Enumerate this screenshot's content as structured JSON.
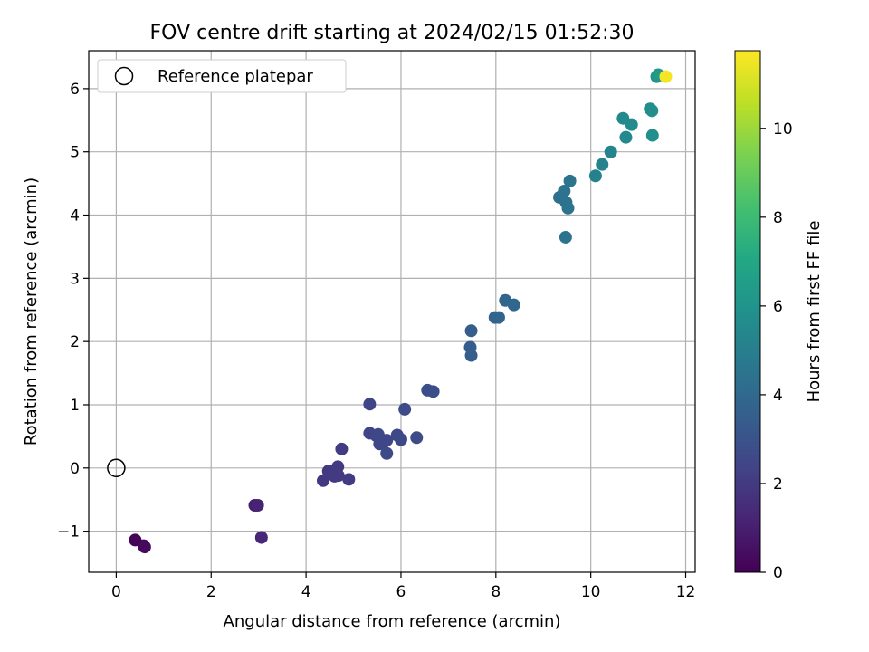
{
  "chart_data": {
    "type": "scatter",
    "title": "FOV centre drift starting at 2024/02/15 01:52:30",
    "xlabel": "Angular distance from reference (arcmin)",
    "ylabel": "Rotation from reference (arcmin)",
    "xlim": [
      -0.58,
      12.2
    ],
    "ylim": [
      -1.65,
      6.6
    ],
    "xticks": [
      0,
      2,
      4,
      6,
      8,
      10,
      12
    ],
    "yticks": [
      -1,
      0,
      1,
      2,
      3,
      4,
      5,
      6
    ],
    "xtick_labels": [
      "0",
      "2",
      "4",
      "6",
      "8",
      "10",
      "12"
    ],
    "ytick_labels": [
      "−1",
      "0",
      "1",
      "2",
      "3",
      "4",
      "5",
      "6"
    ],
    "grid": true,
    "legend": {
      "position": "upper-left",
      "entries": [
        "Reference platepar"
      ]
    },
    "reference_point": {
      "x": 0,
      "y": 0,
      "label": "Reference platepar"
    },
    "colorbar": {
      "label": "Hours from first FF file",
      "colormap": "viridis",
      "range": [
        0,
        11.75
      ],
      "ticks": [
        0,
        2,
        4,
        6,
        8,
        10
      ],
      "tick_labels": [
        "0",
        "2",
        "4",
        "6",
        "8",
        "10"
      ]
    },
    "points": [
      {
        "x": 0.4,
        "y": -1.14,
        "c": 0.1
      },
      {
        "x": 0.58,
        "y": -1.23,
        "c": 0.2
      },
      {
        "x": 0.6,
        "y": -1.25,
        "c": 0.3
      },
      {
        "x": 2.92,
        "y": -0.59,
        "c": 1.0
      },
      {
        "x": 2.98,
        "y": -0.59,
        "c": 1.1
      },
      {
        "x": 3.06,
        "y": -1.1,
        "c": 1.3
      },
      {
        "x": 4.36,
        "y": -0.2,
        "c": 1.9
      },
      {
        "x": 4.47,
        "y": -0.05,
        "c": 1.9
      },
      {
        "x": 4.6,
        "y": -0.13,
        "c": 2.0
      },
      {
        "x": 4.67,
        "y": 0.02,
        "c": 2.0
      },
      {
        "x": 4.68,
        "y": -0.12,
        "c": 2.0
      },
      {
        "x": 4.75,
        "y": 0.3,
        "c": 2.1
      },
      {
        "x": 4.9,
        "y": -0.18,
        "c": 2.1
      },
      {
        "x": 5.34,
        "y": 1.01,
        "c": 2.4
      },
      {
        "x": 5.34,
        "y": 0.55,
        "c": 2.4
      },
      {
        "x": 5.48,
        "y": 0.51,
        "c": 2.4
      },
      {
        "x": 5.52,
        "y": 0.53,
        "c": 2.5
      },
      {
        "x": 5.55,
        "y": 0.38,
        "c": 2.5
      },
      {
        "x": 5.63,
        "y": 0.4,
        "c": 2.5
      },
      {
        "x": 5.7,
        "y": 0.44,
        "c": 2.5
      },
      {
        "x": 5.7,
        "y": 0.23,
        "c": 2.6
      },
      {
        "x": 5.92,
        "y": 0.52,
        "c": 2.6
      },
      {
        "x": 6.0,
        "y": 0.45,
        "c": 2.6
      },
      {
        "x": 6.08,
        "y": 0.93,
        "c": 2.7
      },
      {
        "x": 6.33,
        "y": 0.48,
        "c": 2.7
      },
      {
        "x": 6.56,
        "y": 1.23,
        "c": 2.8
      },
      {
        "x": 6.68,
        "y": 1.21,
        "c": 2.8
      },
      {
        "x": 7.46,
        "y": 1.91,
        "c": 3.5
      },
      {
        "x": 7.48,
        "y": 2.17,
        "c": 3.5
      },
      {
        "x": 7.48,
        "y": 1.78,
        "c": 3.5
      },
      {
        "x": 7.98,
        "y": 2.38,
        "c": 3.7
      },
      {
        "x": 8.06,
        "y": 2.38,
        "c": 3.8
      },
      {
        "x": 8.2,
        "y": 2.65,
        "c": 3.8
      },
      {
        "x": 8.38,
        "y": 2.58,
        "c": 3.9
      },
      {
        "x": 9.34,
        "y": 4.28,
        "c": 4.3
      },
      {
        "x": 9.44,
        "y": 4.38,
        "c": 4.4
      },
      {
        "x": 9.47,
        "y": 3.65,
        "c": 4.5
      },
      {
        "x": 9.48,
        "y": 4.2,
        "c": 4.5
      },
      {
        "x": 9.52,
        "y": 4.11,
        "c": 4.5
      },
      {
        "x": 9.56,
        "y": 4.54,
        "c": 4.5
      },
      {
        "x": 10.1,
        "y": 4.62,
        "c": 5.1
      },
      {
        "x": 10.24,
        "y": 4.8,
        "c": 5.2
      },
      {
        "x": 10.42,
        "y": 5.0,
        "c": 5.3
      },
      {
        "x": 10.68,
        "y": 5.53,
        "c": 5.5
      },
      {
        "x": 10.74,
        "y": 5.23,
        "c": 5.5
      },
      {
        "x": 10.86,
        "y": 5.43,
        "c": 5.6
      },
      {
        "x": 11.25,
        "y": 5.68,
        "c": 5.8
      },
      {
        "x": 11.29,
        "y": 5.65,
        "c": 5.8
      },
      {
        "x": 11.3,
        "y": 5.26,
        "c": 5.8
      },
      {
        "x": 11.39,
        "y": 6.19,
        "c": 6.0
      },
      {
        "x": 11.42,
        "y": 6.22,
        "c": 6.3
      },
      {
        "x": 11.58,
        "y": 6.19,
        "c": 11.6
      }
    ]
  }
}
